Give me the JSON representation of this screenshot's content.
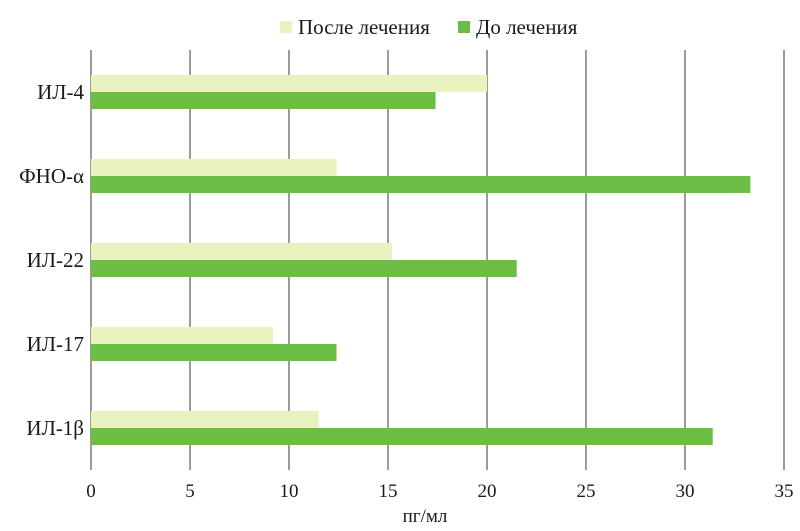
{
  "chart_data": {
    "type": "bar",
    "orientation": "horizontal",
    "categories": [
      "ИЛ-4",
      "ФНО-α",
      "ИЛ-22",
      "ИЛ-17",
      "ИЛ-1β"
    ],
    "series": [
      {
        "name": "После лечения",
        "color": "#eaf2c0",
        "values": [
          20.0,
          12.4,
          15.2,
          9.2,
          11.5
        ]
      },
      {
        "name": "До лечения",
        "color": "#6cbd45",
        "values": [
          17.4,
          33.3,
          21.5,
          12.4,
          31.4
        ]
      }
    ],
    "xlabel": "пг/мл",
    "ylabel": "",
    "xlim": [
      0,
      35
    ],
    "xticks": [
      "0",
      "5",
      "10",
      "15",
      "20",
      "25",
      "30",
      "35"
    ],
    "grid": true,
    "legend_position": "top"
  }
}
